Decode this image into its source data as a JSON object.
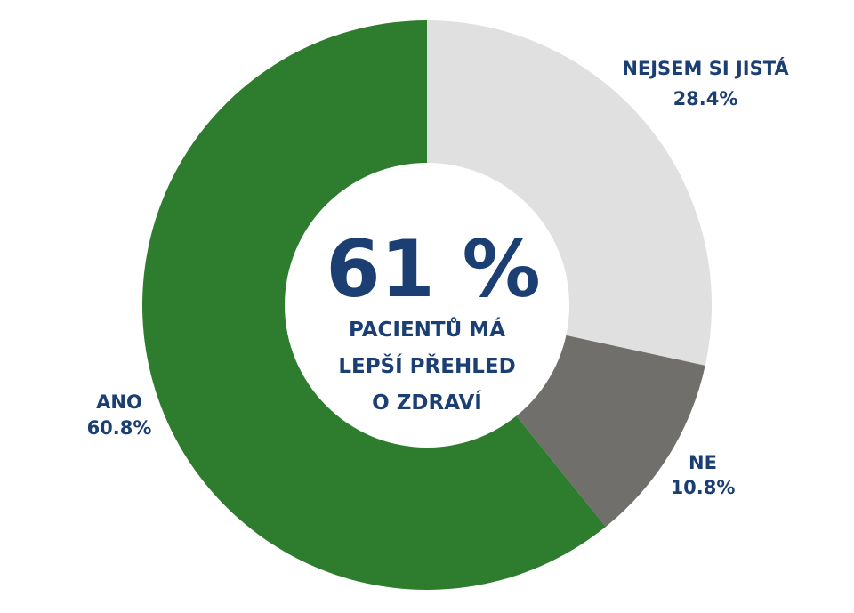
{
  "chart_data": {
    "type": "pie",
    "variant": "donut",
    "start": "top",
    "direction": "clockwise",
    "slices": [
      {
        "label": "NEJSEM SI JISTÁ",
        "value": 28.4,
        "value_label": "28.4%",
        "color": "#e0e0e0"
      },
      {
        "label": "NE",
        "value": 10.8,
        "value_label": "10.8%",
        "color": "#706f6b"
      },
      {
        "label": "ANO",
        "value": 60.8,
        "value_label": "60.8%",
        "color": "#2e7d2e"
      }
    ],
    "center": {
      "headline": "61 %",
      "lines": [
        "PACIENTŮ MÁ",
        "LEPŠÍ PŘEHLED",
        "O ZDRAVÍ"
      ]
    },
    "text_color": "#1b3f73"
  }
}
